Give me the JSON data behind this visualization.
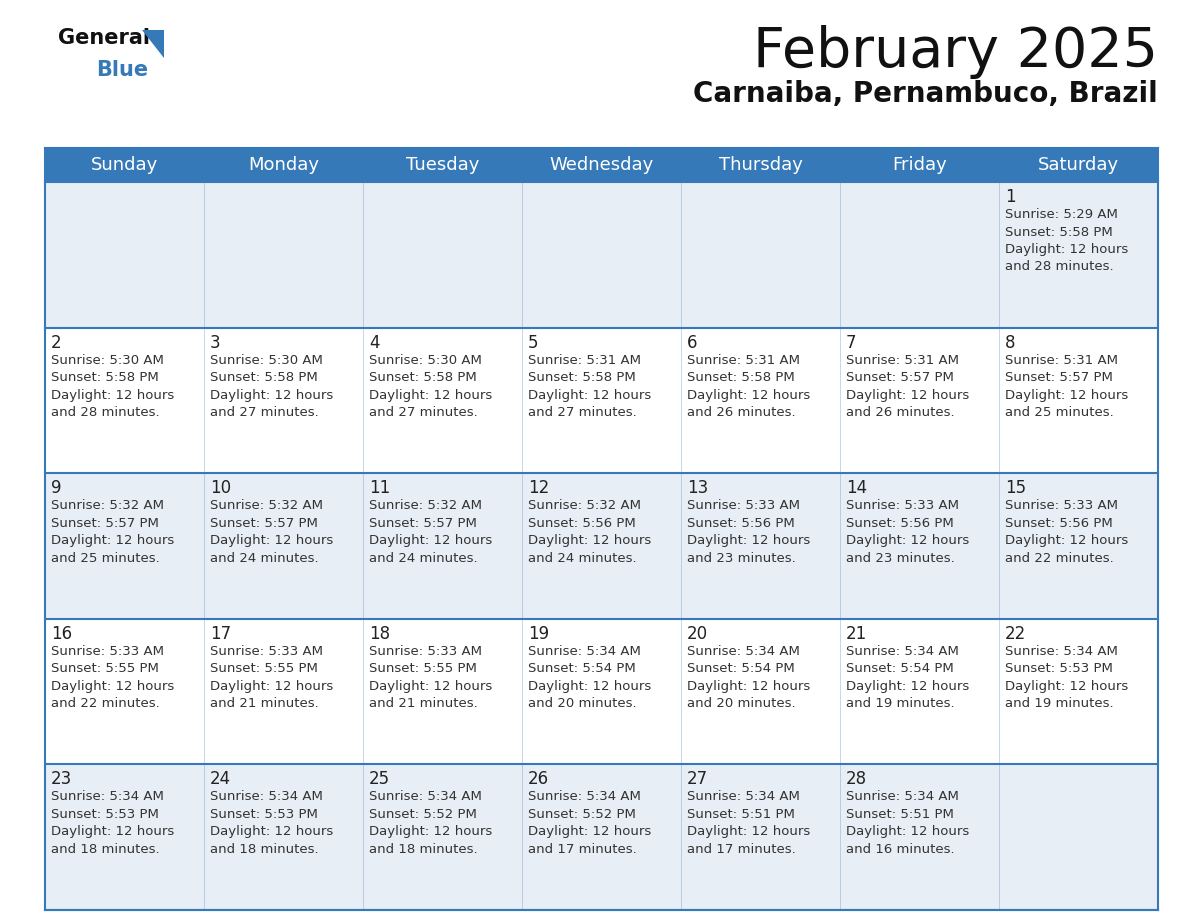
{
  "title": "February 2025",
  "subtitle": "Carnaiba, Pernambuco, Brazil",
  "header_bg_color": "#3579b8",
  "header_text_color": "#ffffff",
  "cell_bg_even": "#e8eef5",
  "cell_bg_odd": "#ffffff",
  "day_number_color": "#222222",
  "info_text_color": "#333333",
  "border_color": "#3579b8",
  "days_of_week": [
    "Sunday",
    "Monday",
    "Tuesday",
    "Wednesday",
    "Thursday",
    "Friday",
    "Saturday"
  ],
  "calendar": [
    [
      {
        "day": 0,
        "info": ""
      },
      {
        "day": 0,
        "info": ""
      },
      {
        "day": 0,
        "info": ""
      },
      {
        "day": 0,
        "info": ""
      },
      {
        "day": 0,
        "info": ""
      },
      {
        "day": 0,
        "info": ""
      },
      {
        "day": 1,
        "info": "Sunrise: 5:29 AM\nSunset: 5:58 PM\nDaylight: 12 hours\nand 28 minutes."
      }
    ],
    [
      {
        "day": 2,
        "info": "Sunrise: 5:30 AM\nSunset: 5:58 PM\nDaylight: 12 hours\nand 28 minutes."
      },
      {
        "day": 3,
        "info": "Sunrise: 5:30 AM\nSunset: 5:58 PM\nDaylight: 12 hours\nand 27 minutes."
      },
      {
        "day": 4,
        "info": "Sunrise: 5:30 AM\nSunset: 5:58 PM\nDaylight: 12 hours\nand 27 minutes."
      },
      {
        "day": 5,
        "info": "Sunrise: 5:31 AM\nSunset: 5:58 PM\nDaylight: 12 hours\nand 27 minutes."
      },
      {
        "day": 6,
        "info": "Sunrise: 5:31 AM\nSunset: 5:58 PM\nDaylight: 12 hours\nand 26 minutes."
      },
      {
        "day": 7,
        "info": "Sunrise: 5:31 AM\nSunset: 5:57 PM\nDaylight: 12 hours\nand 26 minutes."
      },
      {
        "day": 8,
        "info": "Sunrise: 5:31 AM\nSunset: 5:57 PM\nDaylight: 12 hours\nand 25 minutes."
      }
    ],
    [
      {
        "day": 9,
        "info": "Sunrise: 5:32 AM\nSunset: 5:57 PM\nDaylight: 12 hours\nand 25 minutes."
      },
      {
        "day": 10,
        "info": "Sunrise: 5:32 AM\nSunset: 5:57 PM\nDaylight: 12 hours\nand 24 minutes."
      },
      {
        "day": 11,
        "info": "Sunrise: 5:32 AM\nSunset: 5:57 PM\nDaylight: 12 hours\nand 24 minutes."
      },
      {
        "day": 12,
        "info": "Sunrise: 5:32 AM\nSunset: 5:56 PM\nDaylight: 12 hours\nand 24 minutes."
      },
      {
        "day": 13,
        "info": "Sunrise: 5:33 AM\nSunset: 5:56 PM\nDaylight: 12 hours\nand 23 minutes."
      },
      {
        "day": 14,
        "info": "Sunrise: 5:33 AM\nSunset: 5:56 PM\nDaylight: 12 hours\nand 23 minutes."
      },
      {
        "day": 15,
        "info": "Sunrise: 5:33 AM\nSunset: 5:56 PM\nDaylight: 12 hours\nand 22 minutes."
      }
    ],
    [
      {
        "day": 16,
        "info": "Sunrise: 5:33 AM\nSunset: 5:55 PM\nDaylight: 12 hours\nand 22 minutes."
      },
      {
        "day": 17,
        "info": "Sunrise: 5:33 AM\nSunset: 5:55 PM\nDaylight: 12 hours\nand 21 minutes."
      },
      {
        "day": 18,
        "info": "Sunrise: 5:33 AM\nSunset: 5:55 PM\nDaylight: 12 hours\nand 21 minutes."
      },
      {
        "day": 19,
        "info": "Sunrise: 5:34 AM\nSunset: 5:54 PM\nDaylight: 12 hours\nand 20 minutes."
      },
      {
        "day": 20,
        "info": "Sunrise: 5:34 AM\nSunset: 5:54 PM\nDaylight: 12 hours\nand 20 minutes."
      },
      {
        "day": 21,
        "info": "Sunrise: 5:34 AM\nSunset: 5:54 PM\nDaylight: 12 hours\nand 19 minutes."
      },
      {
        "day": 22,
        "info": "Sunrise: 5:34 AM\nSunset: 5:53 PM\nDaylight: 12 hours\nand 19 minutes."
      }
    ],
    [
      {
        "day": 23,
        "info": "Sunrise: 5:34 AM\nSunset: 5:53 PM\nDaylight: 12 hours\nand 18 minutes."
      },
      {
        "day": 24,
        "info": "Sunrise: 5:34 AM\nSunset: 5:53 PM\nDaylight: 12 hours\nand 18 minutes."
      },
      {
        "day": 25,
        "info": "Sunrise: 5:34 AM\nSunset: 5:52 PM\nDaylight: 12 hours\nand 18 minutes."
      },
      {
        "day": 26,
        "info": "Sunrise: 5:34 AM\nSunset: 5:52 PM\nDaylight: 12 hours\nand 17 minutes."
      },
      {
        "day": 27,
        "info": "Sunrise: 5:34 AM\nSunset: 5:51 PM\nDaylight: 12 hours\nand 17 minutes."
      },
      {
        "day": 28,
        "info": "Sunrise: 5:34 AM\nSunset: 5:51 PM\nDaylight: 12 hours\nand 16 minutes."
      },
      {
        "day": 0,
        "info": ""
      }
    ]
  ],
  "logo_triangle_color": "#3579b8",
  "title_fontsize": 40,
  "subtitle_fontsize": 20,
  "header_fontsize": 13,
  "day_num_fontsize": 12,
  "info_fontsize": 9.5
}
